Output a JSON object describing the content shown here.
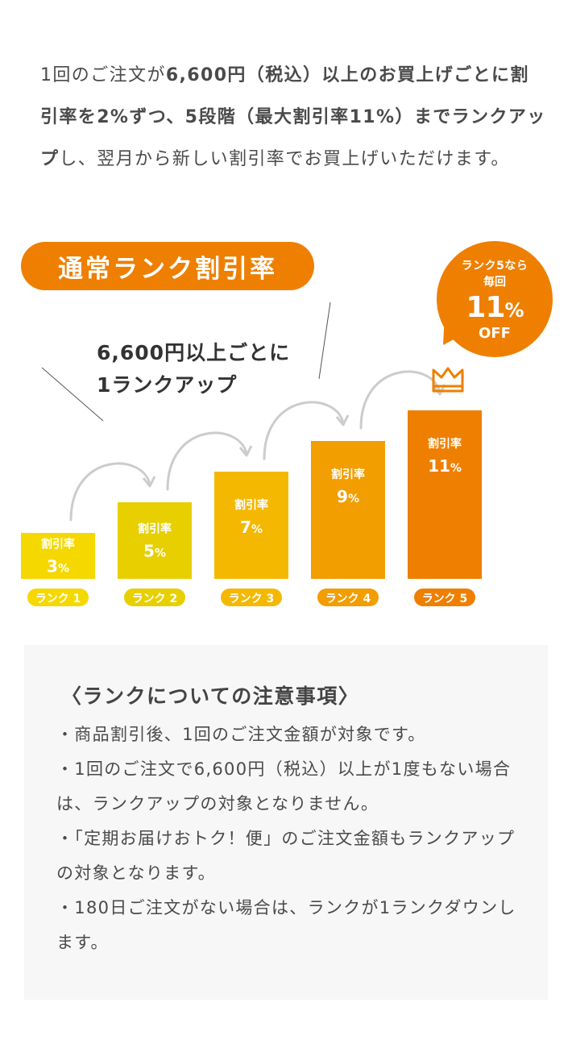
{
  "intro": {
    "part1": "1回のご注文が",
    "part2": "6,600円（税込）以上のお買上げごとに割引率を2%ずつ、5段階（最大割引率11%）までランクアップ",
    "part3": "し、翌月から新しい割引率でお買上げいただけます。"
  },
  "title": "通常ランク割引率",
  "bubble": {
    "line1": "ランク5なら",
    "line2": "毎回",
    "value": "11",
    "unit": "%",
    "off": "OFF"
  },
  "rank_note": {
    "line1": "6,600円以上ごとに",
    "line2": "1ランクアップ"
  },
  "colors": {
    "accent": "#ee7f00",
    "rank_bars": [
      "#f5d800",
      "#e8cf00",
      "#f5b800",
      "#f29d00",
      "#ee7f00"
    ],
    "rank_tags": [
      "#f5d800",
      "#e8cf00",
      "#f5b800",
      "#f29d00",
      "#ee7f00"
    ],
    "arrow": "#cccccc"
  },
  "crown_icon": "crown-icon",
  "chart_data": {
    "type": "bar",
    "categories": [
      "ランク 1",
      "ランク 2",
      "ランク 3",
      "ランク 4",
      "ランク 5"
    ],
    "values": [
      3,
      5,
      7,
      9,
      11
    ],
    "bar_label": "割引率",
    "unit": "%",
    "ylim": [
      0,
      12
    ]
  },
  "notes": {
    "title": "〈ランクについての注意事項〉",
    "items": [
      "・商品割引後、1回のご注文金額が対象です。",
      "・1回のご注文で6,600円（税込）以上が1度もない場合は、ランクアップの対象となりません。",
      "・「定期お届けおトク！便」のご注文金額もランクアップの対象となります。",
      "・180日ご注文がない場合は、ランクが1ランクダウンします。"
    ]
  }
}
